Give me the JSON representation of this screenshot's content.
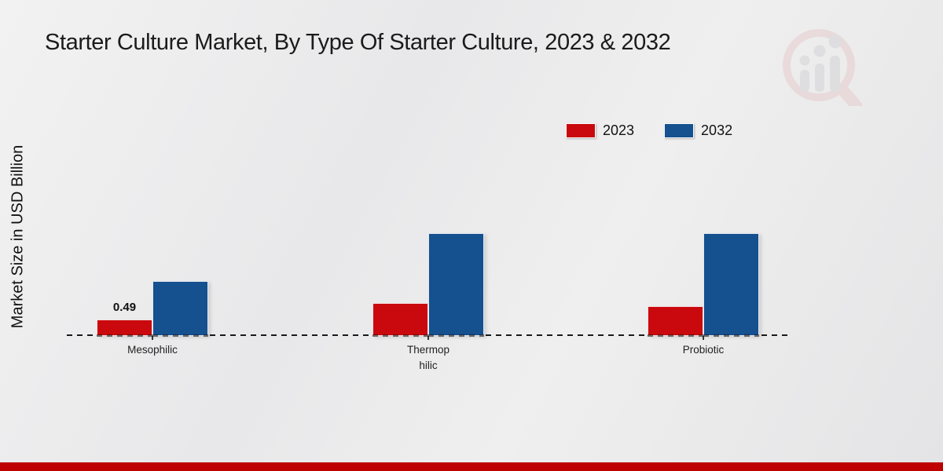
{
  "chart_data": {
    "type": "bar",
    "title": "Starter Culture Market, By Type Of Starter Culture, 2023 & 2032",
    "ylabel": "Market Size in USD Billion",
    "xlabel": "",
    "categories": [
      "Mesophilic",
      "Thermophilic",
      "Probiotic"
    ],
    "categories_display": [
      "Mesophilic",
      "Thermop\nhilic",
      "Probiotic"
    ],
    "series": [
      {
        "name": "2023",
        "color": "#c9090d",
        "values": [
          0.49,
          1.03,
          0.93
        ],
        "bar_labels": [
          "0.49",
          "",
          ""
        ]
      },
      {
        "name": "2032",
        "color": "#15508f",
        "values": [
          1.75,
          3.33,
          3.33
        ],
        "bar_labels": [
          "",
          "",
          ""
        ]
      }
    ],
    "ylim": [
      0,
      4.5
    ],
    "grid": false,
    "legend_position": "top-right",
    "baseline_style": "dashed-black"
  },
  "watermark_icon": "market-research-future-logo",
  "footer": {
    "accent_color": "#bf0000"
  }
}
